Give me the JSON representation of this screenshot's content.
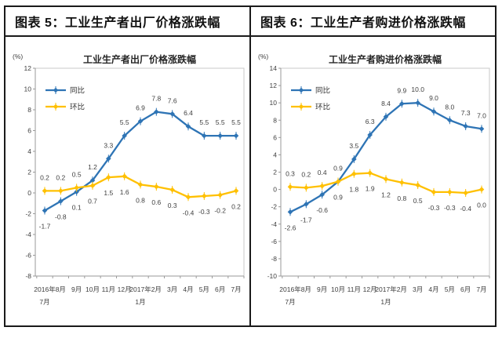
{
  "panels": [
    {
      "header": "图表 5：工业生产者出厂价格涨跌幅"
    },
    {
      "header": "图表 6：工业生产者购进价格涨跌幅"
    }
  ],
  "colors": {
    "frame_border": "#1a1a1a",
    "plot_border": "#c9c9c9",
    "axis": "#9a9a9a",
    "tongbi_blue": "#2E74B5",
    "huanbi_yellow": "#FFC000",
    "label_text": "#3f3f3f"
  },
  "chart_data": [
    {
      "type": "line",
      "title": "工业生产者出厂价格涨跌幅",
      "unit_label": "(%)",
      "xlabel": "",
      "ylabel": "(%)",
      "ylim": [
        -8,
        12
      ],
      "ytick_step": 2,
      "grid": false,
      "legend_position": "upper-left-inside",
      "categories_lines": [
        [
          "2016年",
          "7月"
        ],
        [
          "8月"
        ],
        [
          "9月"
        ],
        [
          "10月"
        ],
        [
          "11月"
        ],
        [
          "12月"
        ],
        [
          "2017年",
          "1月"
        ],
        [
          "2月"
        ],
        [
          "3月"
        ],
        [
          "4月"
        ],
        [
          "5月"
        ],
        [
          "6月"
        ],
        [
          "7月"
        ]
      ],
      "series": [
        {
          "name": "同比",
          "color": "#2E74B5",
          "values": [
            -1.7,
            -0.8,
            0.1,
            1.2,
            3.3,
            5.5,
            6.9,
            7.8,
            7.6,
            6.4,
            5.5,
            5.5,
            5.5
          ],
          "label_sides": [
            "below",
            "below",
            "below",
            "above",
            "above",
            "above",
            "above",
            "above",
            "above",
            "above",
            "above",
            "above",
            "above"
          ]
        },
        {
          "name": "环比",
          "color": "#FFC000",
          "values": [
            0.2,
            0.2,
            0.5,
            0.7,
            1.5,
            1.6,
            0.8,
            0.6,
            0.3,
            -0.4,
            -0.3,
            -0.2,
            0.2
          ],
          "label_sides": [
            "above",
            "above",
            "above",
            "below",
            "below",
            "below",
            "below",
            "below",
            "below",
            "below",
            "below",
            "below",
            "below"
          ]
        }
      ]
    },
    {
      "type": "line",
      "title": "工业生产者购进价格涨跌幅",
      "unit_label": "(%)",
      "xlabel": "",
      "ylabel": "(%)",
      "ylim": [
        -10,
        14
      ],
      "ytick_step": 2,
      "grid": false,
      "legend_position": "upper-left-inside",
      "categories_lines": [
        [
          "2016年",
          "7月"
        ],
        [
          "8月"
        ],
        [
          "9月"
        ],
        [
          "10月"
        ],
        [
          "11月"
        ],
        [
          "12月"
        ],
        [
          "2017年",
          "1月"
        ],
        [
          "2月"
        ],
        [
          "3月"
        ],
        [
          "4月"
        ],
        [
          "5月"
        ],
        [
          "6月"
        ],
        [
          "7月"
        ]
      ],
      "series": [
        {
          "name": "同比",
          "color": "#2E74B5",
          "values": [
            -2.6,
            -1.7,
            -0.6,
            0.9,
            3.5,
            6.3,
            8.4,
            9.9,
            10.0,
            9.0,
            8.0,
            7.3,
            7.0
          ],
          "label_sides": [
            "below",
            "below",
            "below",
            "above",
            "above",
            "above",
            "above",
            "above",
            "above",
            "above",
            "above",
            "above",
            "above"
          ]
        },
        {
          "name": "环比",
          "color": "#FFC000",
          "values": [
            0.3,
            0.2,
            0.4,
            0.9,
            1.8,
            1.9,
            1.2,
            0.8,
            0.5,
            -0.3,
            -0.3,
            -0.4,
            0.0
          ],
          "label_sides": [
            "above",
            "above",
            "above",
            "below",
            "below",
            "below",
            "below",
            "below",
            "below",
            "below",
            "below",
            "below",
            "below"
          ]
        }
      ]
    }
  ]
}
